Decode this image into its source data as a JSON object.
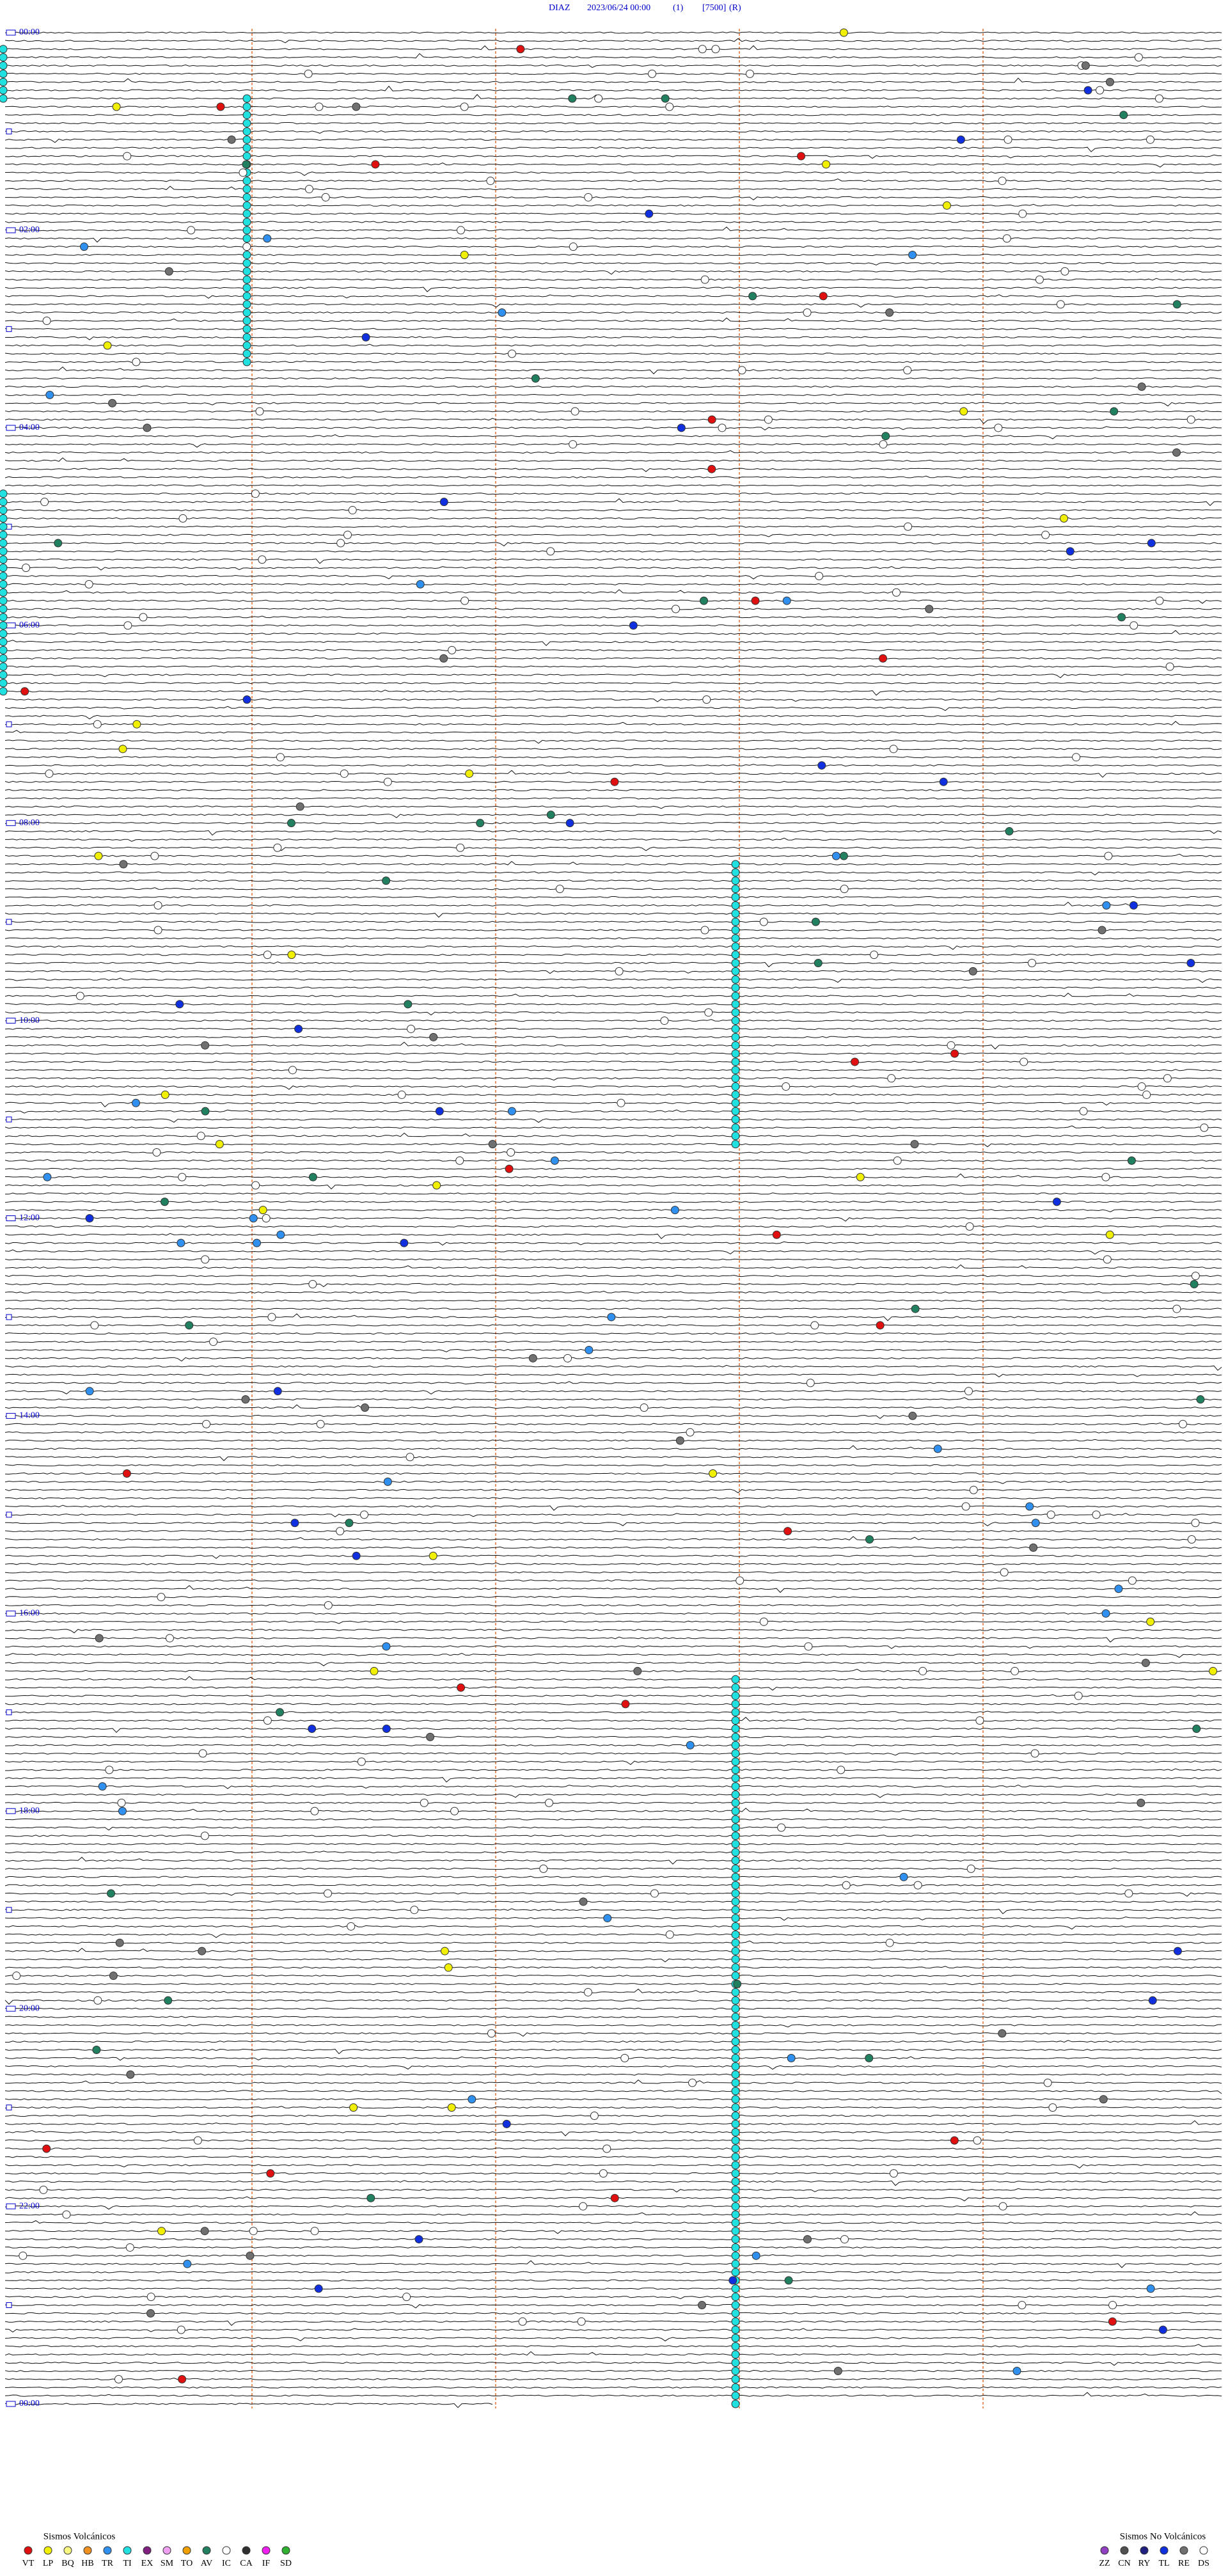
{
  "header": {
    "station": "DIAZ",
    "datetime": "2023/06/24 00:00",
    "channel": "(1)",
    "scale": "[7500]",
    "mode": "(R)"
  },
  "hour_labels": [
    "00:00",
    "02:00",
    "04:00",
    "06:00",
    "08:00",
    "10:00",
    "12:00",
    "14:00",
    "16:00",
    "18:00",
    "20:00",
    "22:00",
    "00:00"
  ],
  "legend": {
    "volcanic": {
      "title": "Sismos Volcánicos",
      "items": [
        {
          "code": "VT",
          "color": "#e01010"
        },
        {
          "code": "LP",
          "color": "#f0f000"
        },
        {
          "code": "BQ",
          "color": "#f8f880"
        },
        {
          "code": "HB",
          "color": "#f09020"
        },
        {
          "code": "TR",
          "color": "#3090f0"
        },
        {
          "code": "TI",
          "color": "#20e0e0"
        },
        {
          "code": "EX",
          "color": "#802080"
        },
        {
          "code": "SM",
          "color": "#f0a0f0"
        },
        {
          "code": "TO",
          "color": "#f0a000"
        },
        {
          "code": "AV",
          "color": "#208060"
        },
        {
          "code": "IC",
          "color": "#ffffff"
        },
        {
          "code": "CA",
          "color": "#303030"
        },
        {
          "code": "IF",
          "color": "#f020f0"
        },
        {
          "code": "SD",
          "color": "#30b030"
        }
      ]
    },
    "non_volcanic": {
      "title": "Sismos No Volcánicos",
      "items": [
        {
          "code": "ZZ",
          "color": "#9040c0"
        },
        {
          "code": "CN",
          "color": "#505050"
        },
        {
          "code": "RY",
          "color": "#202080"
        },
        {
          "code": "TL",
          "color": "#1030e0"
        },
        {
          "code": "RE",
          "color": "#707070"
        },
        {
          "code": "DS",
          "color": "#ffffff"
        }
      ]
    }
  }
}
